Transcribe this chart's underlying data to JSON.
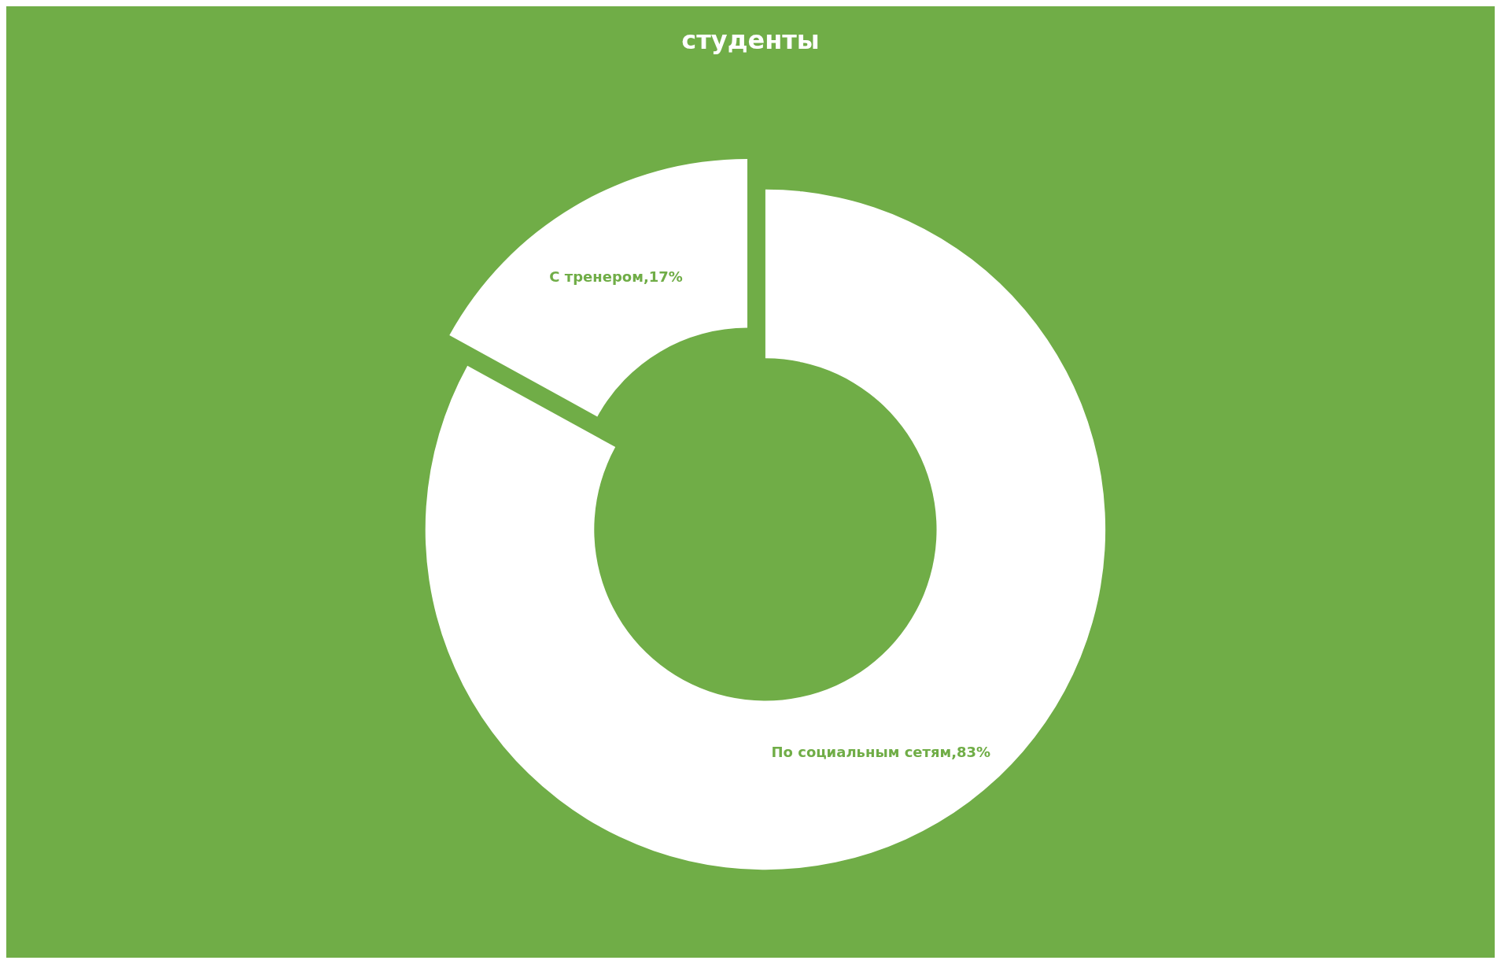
{
  "chart_data": {
    "type": "donut",
    "title": "студенты",
    "categories": [
      "По социальным сетям",
      "С тренером"
    ],
    "values": [
      83,
      17
    ],
    "value_labels": [
      "83%",
      "17%"
    ],
    "colors": [
      "#ffffff",
      "#ffffff"
    ],
    "legend": false
  }
}
